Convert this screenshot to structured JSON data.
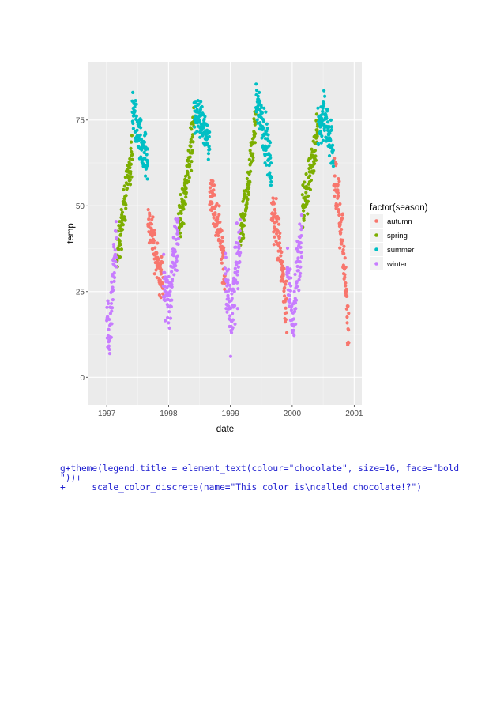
{
  "chart_data": {
    "type": "scatter",
    "title": "",
    "xlabel": "date",
    "ylabel": "temp",
    "xlim": [
      "1996-09-15",
      "2001-02-15"
    ],
    "ylim": [
      -8,
      92
    ],
    "x_ticks": [
      "1997",
      "1998",
      "1999",
      "2000",
      "2001"
    ],
    "y_ticks": [
      0,
      25,
      50,
      75
    ],
    "grid": true,
    "legend": {
      "title": "factor(season)",
      "placement": "right",
      "entries": [
        "autumn",
        "spring",
        "summer",
        "winter"
      ]
    },
    "series": [
      {
        "name": "autumn",
        "color": "#F8766D",
        "segments": [
          {
            "start": "1997-09-01",
            "end": "1997-11-30",
            "path": [
              [
                0,
                44
              ],
              [
                0.3,
                42
              ],
              [
                0.6,
                33
              ],
              [
                1,
                27
              ]
            ],
            "spread": 5
          },
          {
            "start": "1998-09-01",
            "end": "1998-11-30",
            "path": [
              [
                0,
                56
              ],
              [
                0.3,
                50
              ],
              [
                0.6,
                42
              ],
              [
                1,
                30
              ]
            ],
            "spread": 5
          },
          {
            "start": "1999-09-01",
            "end": "1999-11-30",
            "path": [
              [
                0,
                50
              ],
              [
                0.3,
                45
              ],
              [
                0.6,
                36
              ],
              [
                1,
                18
              ]
            ],
            "spread": 5
          },
          {
            "start": "2000-09-01",
            "end": "2000-11-30",
            "path": [
              [
                0,
                60
              ],
              [
                0.3,
                53
              ],
              [
                0.65,
                36
              ],
              [
                1,
                10
              ]
            ],
            "spread": 6
          }
        ]
      },
      {
        "name": "spring",
        "color": "#7CAE00",
        "segments": [
          {
            "start": "1997-03-01",
            "end": "1997-05-31",
            "path": [
              [
                0,
                36
              ],
              [
                0.35,
                45
              ],
              [
                0.7,
                58
              ],
              [
                1,
                65
              ]
            ],
            "spread": 5
          },
          {
            "start": "1998-03-01",
            "end": "1998-05-31",
            "path": [
              [
                0,
                44
              ],
              [
                0.35,
                52
              ],
              [
                0.7,
                64
              ],
              [
                1,
                74
              ]
            ],
            "spread": 5
          },
          {
            "start": "1999-03-01",
            "end": "1999-05-31",
            "path": [
              [
                0,
                42
              ],
              [
                0.35,
                50
              ],
              [
                0.7,
                62
              ],
              [
                1,
                75
              ]
            ],
            "spread": 5
          },
          {
            "start": "2000-03-01",
            "end": "2000-05-31",
            "path": [
              [
                0,
                48
              ],
              [
                0.35,
                54
              ],
              [
                0.7,
                64
              ],
              [
                1,
                72
              ]
            ],
            "spread": 5
          }
        ]
      },
      {
        "name": "summer",
        "color": "#00BFC4",
        "segments": [
          {
            "start": "1997-06-01",
            "end": "1997-08-31",
            "path": [
              [
                0,
                78
              ],
              [
                0.35,
                72
              ],
              [
                0.7,
                67
              ],
              [
                1,
                62
              ]
            ],
            "spread": 5
          },
          {
            "start": "1998-06-01",
            "end": "1998-08-31",
            "path": [
              [
                0,
                76
              ],
              [
                0.35,
                76
              ],
              [
                0.7,
                72
              ],
              [
                1,
                67
              ]
            ],
            "spread": 4
          },
          {
            "start": "1999-06-01",
            "end": "1999-08-31",
            "path": [
              [
                0,
                82
              ],
              [
                0.35,
                76
              ],
              [
                0.7,
                68
              ],
              [
                1,
                60
              ]
            ],
            "spread": 5
          },
          {
            "start": "2000-06-01",
            "end": "2000-08-31",
            "path": [
              [
                0,
                72
              ],
              [
                0.35,
                76
              ],
              [
                0.7,
                72
              ],
              [
                1,
                66
              ]
            ],
            "spread": 5
          }
        ]
      },
      {
        "name": "winter",
        "color": "#C77CFF",
        "segments": [
          {
            "start": "1997-01-01",
            "end": "1997-02-28",
            "path": [
              [
                0,
                20
              ],
              [
                0.3,
                10
              ],
              [
                0.6,
                28
              ],
              [
                1,
                38
              ]
            ],
            "spread": 8
          },
          {
            "start": "1997-12-01",
            "end": "1998-02-28",
            "path": [
              [
                0,
                28
              ],
              [
                0.4,
                22
              ],
              [
                0.7,
                34
              ],
              [
                1,
                42
              ]
            ],
            "spread": 7
          },
          {
            "start": "1998-12-01",
            "end": "1999-02-28",
            "path": [
              [
                0,
                30
              ],
              [
                0.4,
                18
              ],
              [
                0.7,
                30
              ],
              [
                1,
                40
              ]
            ],
            "spread": 8
          },
          {
            "start": "1999-12-01",
            "end": "2000-02-28",
            "path": [
              [
                0,
                30
              ],
              [
                0.4,
                18
              ],
              [
                0.7,
                32
              ],
              [
                1,
                42
              ]
            ],
            "spread": 7
          }
        ]
      }
    ]
  },
  "code_lines": [
    "g+theme(legend.title = element_text(colour=\"chocolate\", size=16, face=\"bold",
    "\"))+",
    "+     scale_color_discrete(name=\"This color is\\ncalled chocolate!?\")"
  ]
}
